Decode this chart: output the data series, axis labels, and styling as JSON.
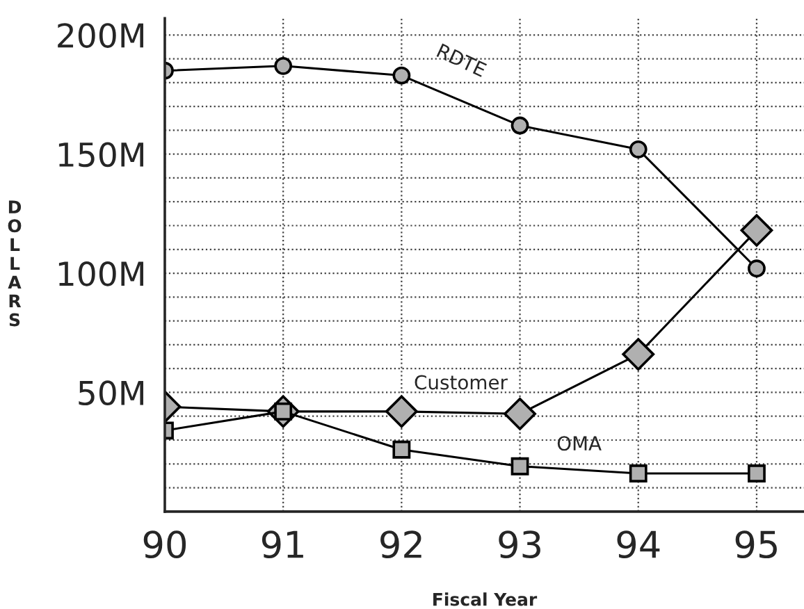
{
  "chart_data": {
    "type": "line",
    "xlabel": "Fiscal Year",
    "ylabel": "DOLLARS",
    "x": [
      90,
      91,
      92,
      93,
      94,
      95
    ],
    "series": [
      {
        "name": "RDTE",
        "color": "#000000",
        "marker": "circle",
        "values": [
          185,
          187,
          183,
          162,
          152,
          102
        ]
      },
      {
        "name": "Customer",
        "color": "#000000",
        "marker": "diamond",
        "values": [
          44,
          42,
          42,
          41,
          66,
          118
        ]
      },
      {
        "name": "OMA",
        "color": "#000000",
        "marker": "square",
        "values": [
          34,
          42,
          26,
          19,
          16,
          16
        ]
      }
    ],
    "xlim": [
      90,
      95.4
    ],
    "xticks": [
      90,
      91,
      92,
      93,
      94,
      95
    ],
    "ylim": [
      0,
      207
    ],
    "yticks": [
      {
        "value": 10,
        "label": null
      },
      {
        "value": 20,
        "label": null
      },
      {
        "value": 30,
        "label": null
      },
      {
        "value": 40,
        "label": null
      },
      {
        "value": 50,
        "label": "50M"
      },
      {
        "value": 60,
        "label": null
      },
      {
        "value": 70,
        "label": null
      },
      {
        "value": 80,
        "label": null
      },
      {
        "value": 90,
        "label": null
      },
      {
        "value": 100,
        "label": "100M"
      },
      {
        "value": 110,
        "label": null
      },
      {
        "value": 120,
        "label": null
      },
      {
        "value": 130,
        "label": null
      },
      {
        "value": 140,
        "label": null
      },
      {
        "value": 150,
        "label": "150M"
      },
      {
        "value": 160,
        "label": null
      },
      {
        "value": 170,
        "label": null
      },
      {
        "value": 180,
        "label": null
      },
      {
        "value": 190,
        "label": null
      },
      {
        "value": 200,
        "label": "200M"
      }
    ],
    "grid": true,
    "line_style": "solid",
    "legend": false
  }
}
